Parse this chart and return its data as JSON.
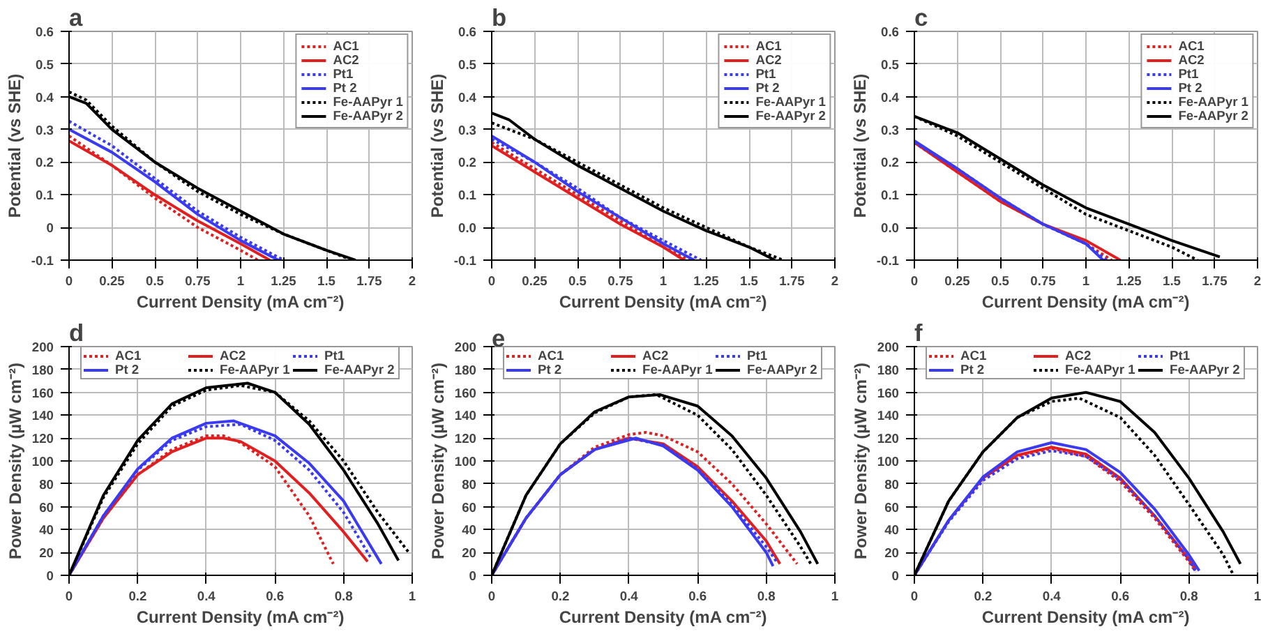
{
  "chart_data": [
    {
      "type": "line",
      "title": "a",
      "xlabel": "Current Density (mA cm⁻²)",
      "ylabel": "Potential (vs SHE)",
      "xlim": [
        0,
        2
      ],
      "ylim": [
        -0.1,
        0.6
      ],
      "xticks": [
        0,
        0.25,
        0.5,
        0.75,
        1,
        1.25,
        1.5,
        1.75,
        2
      ],
      "yticks": [
        -0.1,
        0,
        0.1,
        0.2,
        0.3,
        0.4,
        0.5,
        0.6
      ],
      "grid": true,
      "legend": "top right",
      "series": [
        {
          "name": "AC1",
          "color": "#e02020",
          "line_style": "dotted",
          "x": [
            0,
            0.25,
            0.5,
            0.75,
            1.0,
            1.1
          ],
          "values": [
            0.28,
            0.19,
            0.09,
            0.0,
            -0.07,
            -0.1
          ]
        },
        {
          "name": "AC2",
          "color": "#e02020",
          "line_style": "solid",
          "x": [
            0,
            0.25,
            0.5,
            0.75,
            1.0,
            1.17
          ],
          "values": [
            0.265,
            0.19,
            0.1,
            0.02,
            -0.05,
            -0.1
          ]
        },
        {
          "name": "Pt1",
          "color": "#3a3af0",
          "line_style": "dotted",
          "x": [
            0,
            0.25,
            0.5,
            0.75,
            1.0,
            1.25
          ],
          "values": [
            0.325,
            0.25,
            0.15,
            0.05,
            -0.03,
            -0.1
          ]
        },
        {
          "name": "Pt 2",
          "color": "#3a3af0",
          "line_style": "solid",
          "x": [
            0,
            0.25,
            0.5,
            0.75,
            1.0,
            1.22
          ],
          "values": [
            0.3,
            0.23,
            0.14,
            0.04,
            -0.04,
            -0.1
          ]
        },
        {
          "name": "Fe-AAPyr 1",
          "color": "#000000",
          "line_style": "dotted",
          "x": [
            0,
            0.1,
            0.25,
            0.5,
            0.75,
            1.0,
            1.25,
            1.5,
            1.65
          ],
          "values": [
            0.415,
            0.39,
            0.31,
            0.2,
            0.11,
            0.04,
            -0.02,
            -0.07,
            -0.1
          ]
        },
        {
          "name": "Fe-AAPyr 2",
          "color": "#000000",
          "line_style": "solid",
          "x": [
            0,
            0.1,
            0.25,
            0.5,
            0.75,
            1.0,
            1.25,
            1.5,
            1.67
          ],
          "values": [
            0.4,
            0.38,
            0.3,
            0.2,
            0.12,
            0.05,
            -0.02,
            -0.07,
            -0.1
          ]
        }
      ]
    },
    {
      "type": "line",
      "title": "b",
      "xlabel": "Current Density (mA cm⁻²)",
      "ylabel": "Potential (vs SHE)",
      "xlim": [
        0,
        2
      ],
      "ylim": [
        -0.1,
        0.6
      ],
      "xticks": [
        0,
        0.25,
        0.5,
        0.75,
        1,
        1.25,
        1.5,
        1.75,
        2
      ],
      "yticks": [
        -0.1,
        {
          "value": 0,
          "label": "0.0"
        },
        0.1,
        0.2,
        0.3,
        0.4,
        0.5,
        0.6
      ],
      "grid": true,
      "legend": "top right",
      "series": [
        {
          "name": "AC1",
          "color": "#e02020",
          "line_style": "dotted",
          "x": [
            0,
            0.25,
            0.5,
            0.75,
            1.0,
            1.15
          ],
          "values": [
            0.26,
            0.18,
            0.1,
            0.02,
            -0.06,
            -0.1
          ]
        },
        {
          "name": "AC2",
          "color": "#e02020",
          "line_style": "solid",
          "x": [
            0,
            0.25,
            0.5,
            0.75,
            1.0,
            1.12
          ],
          "values": [
            0.25,
            0.17,
            0.09,
            0.01,
            -0.06,
            -0.1
          ]
        },
        {
          "name": "Pt1",
          "color": "#3a3af0",
          "line_style": "dotted",
          "x": [
            0,
            0.25,
            0.5,
            0.75,
            1.0,
            1.22
          ],
          "values": [
            0.27,
            0.2,
            0.12,
            0.03,
            -0.04,
            -0.1
          ]
        },
        {
          "name": "Pt 2",
          "color": "#3a3af0",
          "line_style": "solid",
          "x": [
            0,
            0.25,
            0.5,
            0.75,
            1.0,
            1.18
          ],
          "values": [
            0.28,
            0.2,
            0.11,
            0.03,
            -0.05,
            -0.1
          ]
        },
        {
          "name": "Fe-AAPyr 1",
          "color": "#000000",
          "line_style": "dotted",
          "x": [
            0,
            0.25,
            0.5,
            0.75,
            1.0,
            1.25,
            1.5,
            1.7
          ],
          "values": [
            0.32,
            0.27,
            0.2,
            0.13,
            0.06,
            0.0,
            -0.06,
            -0.1
          ]
        },
        {
          "name": "Fe-AAPyr 2",
          "color": "#000000",
          "line_style": "solid",
          "x": [
            0,
            0.1,
            0.25,
            0.5,
            0.75,
            1.0,
            1.25,
            1.5,
            1.65
          ],
          "values": [
            0.35,
            0.33,
            0.27,
            0.19,
            0.12,
            0.05,
            -0.01,
            -0.06,
            -0.1
          ]
        }
      ]
    },
    {
      "type": "line",
      "title": "c",
      "xlabel": "Current Density (mA cm⁻²)",
      "ylabel": "Potential (vs SHE)",
      "xlim": [
        0,
        2
      ],
      "ylim": [
        -0.1,
        0.6
      ],
      "xticks": [
        0,
        0.25,
        0.5,
        0.75,
        1,
        1.25,
        1.5,
        1.75,
        2
      ],
      "yticks": [
        -0.1,
        {
          "value": 0,
          "label": "0.0"
        },
        0.1,
        0.2,
        0.3,
        0.4,
        0.5,
        0.6
      ],
      "grid": true,
      "legend": "top right",
      "series": [
        {
          "name": "AC1",
          "color": "#e02020",
          "line_style": "dotted",
          "x": [
            0,
            0.25,
            0.5,
            0.75,
            1.0,
            1.15
          ],
          "values": [
            0.26,
            0.17,
            0.08,
            0.01,
            -0.05,
            -0.1
          ]
        },
        {
          "name": "AC2",
          "color": "#e02020",
          "line_style": "solid",
          "x": [
            0,
            0.25,
            0.5,
            0.75,
            1.0,
            1.2
          ],
          "values": [
            0.26,
            0.17,
            0.08,
            0.01,
            -0.04,
            -0.1
          ]
        },
        {
          "name": "Pt1",
          "color": "#3a3af0",
          "line_style": "dotted",
          "x": [
            0,
            0.25,
            0.5,
            0.75,
            1.0,
            1.12
          ],
          "values": [
            0.26,
            0.18,
            0.09,
            0.01,
            -0.05,
            -0.1
          ]
        },
        {
          "name": "Pt 2",
          "color": "#3a3af0",
          "line_style": "solid",
          "x": [
            0,
            0.25,
            0.5,
            0.75,
            1.0,
            1.1
          ],
          "values": [
            0.265,
            0.18,
            0.09,
            0.01,
            -0.05,
            -0.1
          ]
        },
        {
          "name": "Fe-AAPyr 1",
          "color": "#000000",
          "line_style": "dotted",
          "x": [
            0,
            0.25,
            0.5,
            0.75,
            1.0,
            1.25,
            1.5,
            1.65
          ],
          "values": [
            0.34,
            0.28,
            0.2,
            0.12,
            0.04,
            -0.01,
            -0.06,
            -0.1
          ]
        },
        {
          "name": "Fe-AAPyr 2",
          "color": "#000000",
          "line_style": "solid",
          "x": [
            0,
            0.25,
            0.5,
            0.75,
            1.0,
            1.25,
            1.5,
            1.78
          ],
          "values": [
            0.34,
            0.29,
            0.21,
            0.13,
            0.06,
            0.01,
            -0.04,
            -0.09
          ]
        }
      ]
    },
    {
      "type": "line",
      "title": "d",
      "xlabel": "Current Density (mA cm⁻²)",
      "ylabel": "Power Density (µW cm⁻²)",
      "xlim": [
        0,
        1
      ],
      "ylim": [
        0,
        200
      ],
      "xticks": [
        0,
        0.2,
        0.4,
        0.6,
        0.8,
        1
      ],
      "yticks": [
        0,
        20,
        40,
        60,
        80,
        100,
        120,
        140,
        160,
        180,
        200
      ],
      "grid": true,
      "legend": "top",
      "series": [
        {
          "name": "AC1",
          "color": "#e02020",
          "line_style": "dotted",
          "x": [
            0,
            0.1,
            0.2,
            0.3,
            0.4,
            0.45,
            0.5,
            0.6,
            0.7,
            0.77
          ],
          "values": [
            0,
            50,
            88,
            110,
            122,
            122,
            116,
            95,
            52,
            10
          ]
        },
        {
          "name": "AC2",
          "color": "#e02020",
          "line_style": "solid",
          "x": [
            0,
            0.1,
            0.2,
            0.3,
            0.4,
            0.45,
            0.5,
            0.6,
            0.7,
            0.8,
            0.87
          ],
          "values": [
            0,
            50,
            88,
            108,
            120,
            120,
            117,
            100,
            72,
            38,
            12
          ]
        },
        {
          "name": "Pt1",
          "color": "#3a3af0",
          "line_style": "dotted",
          "x": [
            0,
            0.1,
            0.2,
            0.3,
            0.4,
            0.5,
            0.6,
            0.7,
            0.8,
            0.88
          ],
          "values": [
            0,
            52,
            92,
            118,
            130,
            132,
            118,
            92,
            55,
            15
          ]
        },
        {
          "name": "Pt 2",
          "color": "#3a3af0",
          "line_style": "solid",
          "x": [
            0,
            0.1,
            0.2,
            0.3,
            0.4,
            0.48,
            0.6,
            0.7,
            0.8,
            0.91
          ],
          "values": [
            0,
            52,
            93,
            120,
            133,
            135,
            122,
            98,
            65,
            10
          ]
        },
        {
          "name": "Fe-AAPyr 1",
          "color": "#000000",
          "line_style": "dotted",
          "x": [
            0,
            0.1,
            0.2,
            0.3,
            0.4,
            0.5,
            0.6,
            0.7,
            0.8,
            0.9,
            0.99
          ],
          "values": [
            0,
            68,
            115,
            148,
            162,
            166,
            160,
            135,
            100,
            55,
            20
          ]
        },
        {
          "name": "Fe-AAPyr 2",
          "color": "#000000",
          "line_style": "solid",
          "x": [
            0,
            0.1,
            0.2,
            0.3,
            0.4,
            0.52,
            0.6,
            0.7,
            0.8,
            0.9,
            0.96
          ],
          "values": [
            0,
            70,
            118,
            150,
            164,
            168,
            160,
            132,
            92,
            45,
            13
          ]
        }
      ]
    },
    {
      "type": "line",
      "title": "e",
      "xlabel": "Current Density (mA cm⁻²)",
      "ylabel": "Power Density (µW cm⁻²)",
      "xlim": [
        0,
        1
      ],
      "ylim": [
        0,
        200
      ],
      "xticks": [
        0,
        0.2,
        0.4,
        0.6,
        0.8,
        1
      ],
      "yticks": [
        0,
        20,
        40,
        60,
        80,
        100,
        120,
        140,
        160,
        180,
        200
      ],
      "grid": true,
      "legend": "top",
      "series": [
        {
          "name": "AC1",
          "color": "#e02020",
          "line_style": "dotted",
          "x": [
            0,
            0.1,
            0.2,
            0.3,
            0.4,
            0.45,
            0.5,
            0.6,
            0.7,
            0.8,
            0.89
          ],
          "values": [
            0,
            50,
            88,
            112,
            123,
            125,
            122,
            108,
            80,
            45,
            10
          ]
        },
        {
          "name": "AC2",
          "color": "#e02020",
          "line_style": "solid",
          "x": [
            0,
            0.1,
            0.2,
            0.3,
            0.4,
            0.5,
            0.6,
            0.7,
            0.8,
            0.84
          ],
          "values": [
            0,
            50,
            88,
            110,
            120,
            115,
            95,
            65,
            30,
            10
          ]
        },
        {
          "name": "Pt1",
          "color": "#3a3af0",
          "line_style": "dotted",
          "x": [
            0,
            0.1,
            0.2,
            0.3,
            0.4,
            0.5,
            0.6,
            0.7,
            0.8,
            0.83
          ],
          "values": [
            0,
            50,
            88,
            110,
            120,
            114,
            93,
            62,
            25,
            12
          ]
        },
        {
          "name": "Pt 2",
          "color": "#3a3af0",
          "line_style": "solid",
          "x": [
            0,
            0.1,
            0.2,
            0.3,
            0.42,
            0.5,
            0.6,
            0.7,
            0.8,
            0.82
          ],
          "values": [
            0,
            50,
            88,
            110,
            120,
            113,
            92,
            60,
            20,
            8
          ]
        },
        {
          "name": "Fe-AAPyr 1",
          "color": "#000000",
          "line_style": "dotted",
          "x": [
            0,
            0.1,
            0.2,
            0.3,
            0.4,
            0.48,
            0.6,
            0.7,
            0.8,
            0.9,
            0.93
          ],
          "values": [
            0,
            70,
            115,
            142,
            156,
            158,
            140,
            110,
            70,
            25,
            10
          ]
        },
        {
          "name": "Fe-AAPyr 2",
          "color": "#000000",
          "line_style": "solid",
          "x": [
            0,
            0.1,
            0.2,
            0.3,
            0.4,
            0.49,
            0.6,
            0.7,
            0.8,
            0.9,
            0.95
          ],
          "values": [
            0,
            70,
            115,
            143,
            156,
            158,
            148,
            122,
            85,
            38,
            10
          ]
        }
      ]
    },
    {
      "type": "line",
      "title": "f",
      "xlabel": "Current Density (mA cm⁻²)",
      "ylabel": "Power Density (µW cm⁻²)",
      "xlim": [
        0,
        1
      ],
      "ylim": [
        0,
        200
      ],
      "xticks": [
        0,
        0.2,
        0.4,
        0.6,
        0.8,
        1
      ],
      "yticks": [
        0,
        20,
        40,
        60,
        80,
        100,
        120,
        140,
        160,
        180,
        200
      ],
      "grid": true,
      "legend": "top",
      "series": [
        {
          "name": "AC1",
          "color": "#e02020",
          "line_style": "dotted",
          "x": [
            0,
            0.1,
            0.2,
            0.3,
            0.4,
            0.5,
            0.6,
            0.7,
            0.8,
            0.82
          ],
          "values": [
            0,
            48,
            85,
            104,
            111,
            104,
            82,
            50,
            12,
            3
          ]
        },
        {
          "name": "AC2",
          "color": "#e02020",
          "line_style": "solid",
          "x": [
            0,
            0.1,
            0.2,
            0.3,
            0.4,
            0.5,
            0.6,
            0.7,
            0.8,
            0.82
          ],
          "values": [
            0,
            48,
            85,
            105,
            112,
            106,
            85,
            52,
            14,
            5
          ]
        },
        {
          "name": "Pt1",
          "color": "#3a3af0",
          "line_style": "dotted",
          "x": [
            0,
            0.1,
            0.2,
            0.3,
            0.4,
            0.5,
            0.6,
            0.7,
            0.8,
            0.82
          ],
          "values": [
            0,
            47,
            83,
            102,
            109,
            104,
            84,
            52,
            14,
            3
          ]
        },
        {
          "name": "Pt 2",
          "color": "#3a3af0",
          "line_style": "solid",
          "x": [
            0,
            0.1,
            0.2,
            0.3,
            0.4,
            0.5,
            0.6,
            0.7,
            0.8,
            0.83
          ],
          "values": [
            0,
            48,
            86,
            108,
            116,
            110,
            90,
            58,
            18,
            4
          ]
        },
        {
          "name": "Fe-AAPyr 1",
          "color": "#000000",
          "line_style": "dotted",
          "x": [
            0,
            0.1,
            0.2,
            0.3,
            0.4,
            0.48,
            0.6,
            0.7,
            0.8,
            0.9,
            0.93
          ],
          "values": [
            0,
            65,
            108,
            138,
            152,
            155,
            138,
            105,
            62,
            18,
            0
          ]
        },
        {
          "name": "Fe-AAPyr 2",
          "color": "#000000",
          "line_style": "solid",
          "x": [
            0,
            0.1,
            0.2,
            0.3,
            0.4,
            0.5,
            0.6,
            0.7,
            0.8,
            0.9,
            0.95
          ],
          "values": [
            0,
            65,
            108,
            138,
            155,
            160,
            152,
            125,
            85,
            38,
            10
          ]
        }
      ]
    }
  ]
}
